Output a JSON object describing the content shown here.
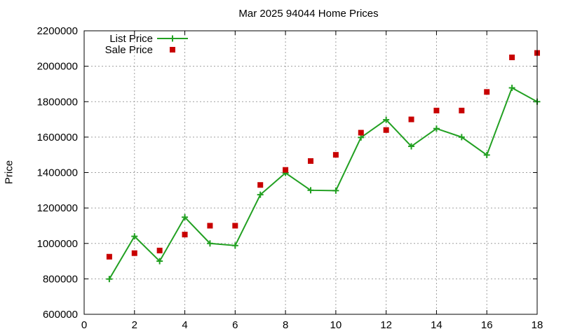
{
  "chart_data": {
    "type": "line",
    "title": "Mar 2025 94044 Home Prices",
    "xlabel": "",
    "ylabel": "Price",
    "xlim": [
      0,
      18
    ],
    "ylim": [
      600000,
      2200000
    ],
    "xticks": [
      0,
      2,
      4,
      6,
      8,
      10,
      12,
      14,
      16,
      18
    ],
    "yticks": [
      600000,
      800000,
      1000000,
      1200000,
      1400000,
      1600000,
      1800000,
      2000000,
      2200000
    ],
    "grid": true,
    "legend_position": "top-left",
    "series": [
      {
        "name": "List Price",
        "style": "line+points",
        "color": "#22a022",
        "x": [
          1,
          2,
          3,
          4,
          5,
          6,
          7,
          8,
          9,
          10,
          11,
          12,
          13,
          14,
          15,
          16,
          17,
          18
        ],
        "values": [
          799000,
          1040000,
          900000,
          1148000,
          1000000,
          988000,
          1275000,
          1398000,
          1300000,
          1298000,
          1598000,
          1698000,
          1548000,
          1648000,
          1600000,
          1499000,
          1878000,
          1800000
        ]
      },
      {
        "name": "Sale Price",
        "style": "points",
        "color": "#c80000",
        "x": [
          1,
          2,
          3,
          4,
          5,
          6,
          7,
          8,
          9,
          10,
          11,
          12,
          13,
          14,
          15,
          16,
          17,
          18
        ],
        "values": [
          925000,
          945000,
          960000,
          1050000,
          1100000,
          1100000,
          1330000,
          1415000,
          1465000,
          1500000,
          1625000,
          1640000,
          1700000,
          1750000,
          1750000,
          1855000,
          2050000,
          2075000
        ]
      }
    ]
  }
}
